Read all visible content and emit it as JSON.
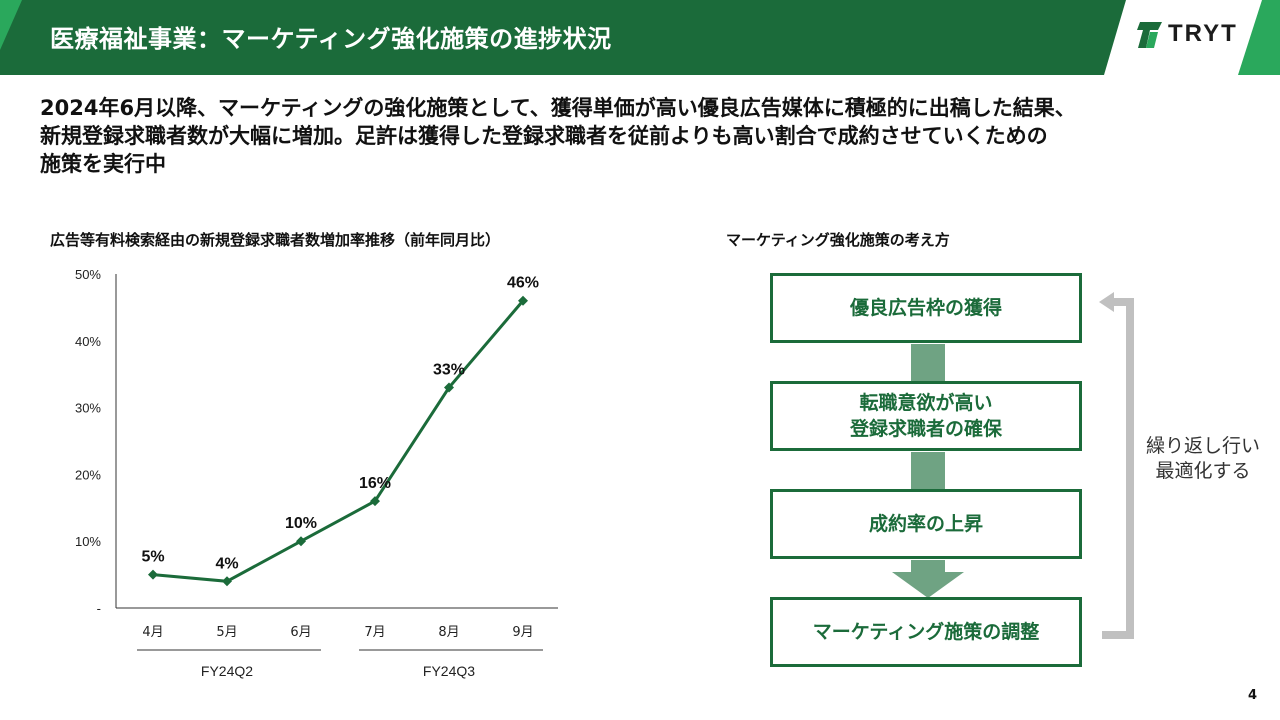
{
  "header": {
    "title": "医療福祉事業：マーケティング強化施策の進捗状況",
    "logo_text": "TRYT",
    "colors": {
      "primary_green": "#1b6b3a",
      "light_green": "#2aa85c"
    }
  },
  "summary": {
    "lines": [
      "2024年6月以降、マーケティングの強化施策として、獲得単価が高い優良広告媒体に積極的に出稿した結果、",
      "新規登録求職者数が大幅に増加。足許は獲得した登録求職者を従前よりも高い割合で成約させていくための",
      "施策を実行中"
    ]
  },
  "chart_title": "広告等有料検索経由の新規登録求職者数増加率推移（前年同月比）",
  "chart_data": {
    "type": "line",
    "title": "広告等有料検索経由の新規登録求職者数増加率推移（前年同月比）",
    "categories": [
      "4月",
      "5月",
      "6月",
      "7月",
      "8月",
      "9月"
    ],
    "values": [
      5,
      4,
      10,
      16,
      33,
      46
    ],
    "data_labels": [
      "5%",
      "4%",
      "10%",
      "16%",
      "33%",
      "46%"
    ],
    "y_ticks": [
      "-",
      "10%",
      "20%",
      "30%",
      "40%",
      "50%"
    ],
    "ylim": [
      0,
      50
    ],
    "groups": [
      {
        "label": "FY24Q2",
        "from": 0,
        "to": 2
      },
      {
        "label": "FY24Q3",
        "from": 3,
        "to": 5
      }
    ],
    "line_color": "#1b6b3a",
    "grid": false
  },
  "concept": {
    "title": "マーケティング強化施策の考え方",
    "steps": [
      {
        "line1": "優良広告枠の獲得",
        "line2": ""
      },
      {
        "line1": "転職意欲が高い",
        "line2": "登録求職者の確保"
      },
      {
        "line1": "成約率の上昇",
        "line2": ""
      },
      {
        "line1": "マーケティング施策の調整",
        "line2": ""
      }
    ],
    "loop_label_line1": "繰り返し行い",
    "loop_label_line2": "最適化する",
    "arrow_color": "#6fa383",
    "loop_color": "#c0c0c0"
  },
  "page_number": "4"
}
